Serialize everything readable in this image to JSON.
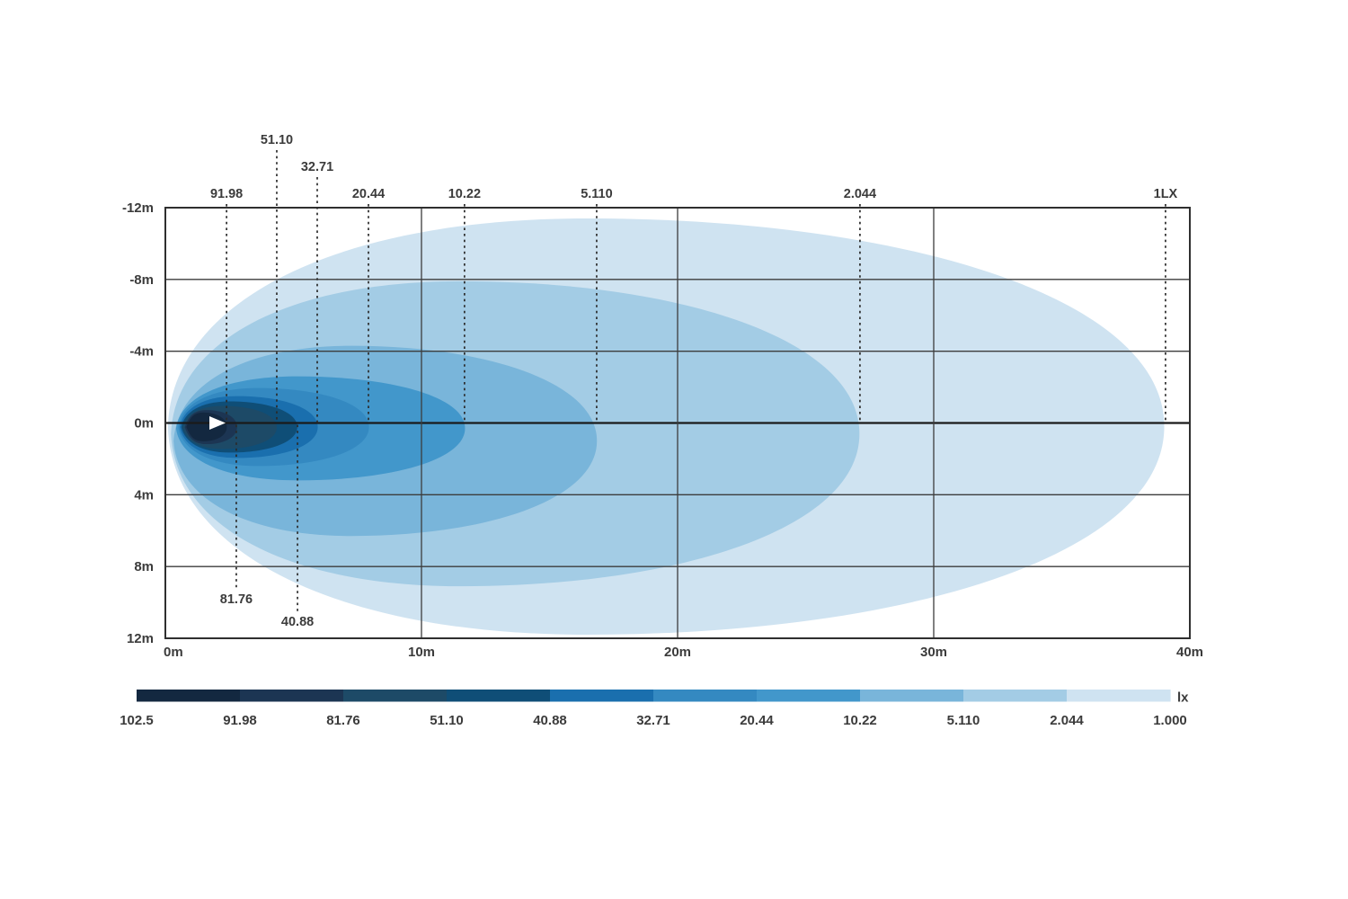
{
  "chart_data": {
    "type": "heatmap",
    "subtype": "isolux-contour-beam-diagram",
    "title": "",
    "grid": true,
    "x_axis": {
      "unit": "m",
      "min": 0,
      "max": 40,
      "tick_labels": [
        "0m",
        "10m",
        "20m",
        "30m",
        "40m"
      ],
      "tick_values": [
        0,
        10,
        20,
        30,
        40
      ]
    },
    "y_axis": {
      "unit": "m",
      "min": -12,
      "max": 12,
      "tick_labels": [
        "-12m",
        "-8m",
        "-4m",
        "0m",
        "4m",
        "8m",
        "12m"
      ],
      "tick_values": [
        -12,
        -8,
        -4,
        0,
        4,
        8,
        12
      ]
    },
    "legend": {
      "unit": "lx",
      "values": [
        "102.5",
        "91.98",
        "81.76",
        "51.10",
        "40.88",
        "32.71",
        "20.44",
        "10.22",
        "5.110",
        "2.044",
        "1.000"
      ],
      "segment_colors": [
        "#132840",
        "#1c3553",
        "#1d4a67",
        "#0f4e77",
        "#1a6fae",
        "#3489c1",
        "#4297cb",
        "#79b5da",
        "#a3cce5",
        "#cfe3f1"
      ],
      "position": "bottom"
    },
    "contours": [
      {
        "lux": "1.000",
        "color": "#cfe3f1",
        "reach_m": 39.0,
        "top_m": -11.4,
        "bottom_m": 11.8,
        "left_m": 0.1
      },
      {
        "lux": "2.044",
        "color": "#a3cce5",
        "reach_m": 27.1,
        "top_m": -7.9,
        "bottom_m": 9.1,
        "left_m": 0.22
      },
      {
        "lux": "5.110",
        "color": "#79b5da",
        "reach_m": 16.85,
        "top_m": -4.3,
        "bottom_m": 6.3,
        "left_m": 0.32
      },
      {
        "lux": "10.22",
        "color": "#4297cb",
        "reach_m": 11.7,
        "top_m": -2.6,
        "bottom_m": 3.2,
        "left_m": 0.42
      },
      {
        "lux": "20.44",
        "color": "#3489c1",
        "reach_m": 7.95,
        "top_m": -1.95,
        "bottom_m": 2.4,
        "left_m": 0.5
      },
      {
        "lux": "32.71",
        "color": "#1a6fae",
        "reach_m": 5.95,
        "top_m": -1.5,
        "bottom_m": 1.95,
        "left_m": 0.56
      },
      {
        "lux": "40.88",
        "color": "#0f4e77",
        "reach_m": 5.15,
        "top_m": -1.2,
        "bottom_m": 1.65,
        "left_m": 0.62
      },
      {
        "lux": "51.10",
        "color": "#1d4a67",
        "reach_m": 4.35,
        "top_m": -0.95,
        "bottom_m": 1.45,
        "left_m": 0.68
      },
      {
        "lux": "81.76",
        "color": "#1c3553",
        "reach_m": 2.8,
        "top_m": -0.72,
        "bottom_m": 1.18,
        "left_m": 0.76
      },
      {
        "lux": "91.98",
        "color": "#132840",
        "reach_m": 2.4,
        "top_m": -0.58,
        "bottom_m": 1.02,
        "left_m": 0.82
      }
    ],
    "callouts_top": [
      {
        "label": "91.98",
        "x_m": 2.39,
        "row": 1
      },
      {
        "label": "51.10",
        "x_m": 4.35,
        "row": 3
      },
      {
        "label": "32.71",
        "x_m": 5.93,
        "row": 2
      },
      {
        "label": "20.44",
        "x_m": 7.93,
        "row": 1
      },
      {
        "label": "10.22",
        "x_m": 11.68,
        "row": 1
      },
      {
        "label": "5.110",
        "x_m": 16.84,
        "row": 1
      },
      {
        "label": "2.044",
        "x_m": 27.12,
        "row": 1
      },
      {
        "label": "1LX",
        "x_m": 39.05,
        "row": 1
      }
    ],
    "callouts_bottom": [
      {
        "label": "81.76",
        "x_m": 2.77,
        "row": 1
      },
      {
        "label": "40.88",
        "x_m": 5.16,
        "row": 2
      }
    ],
    "lamp": {
      "x_m": 2.07,
      "y_m": 0
    }
  },
  "colors": {
    "grid_line": "#3c3c3c",
    "plot_border": "#2f2f2f",
    "center_line": "#1a1a1a",
    "dashed_line": "#2b2b2b",
    "text": "#3b3b3b",
    "lamp_marker": "#ffffff",
    "background": "#ffffff"
  }
}
